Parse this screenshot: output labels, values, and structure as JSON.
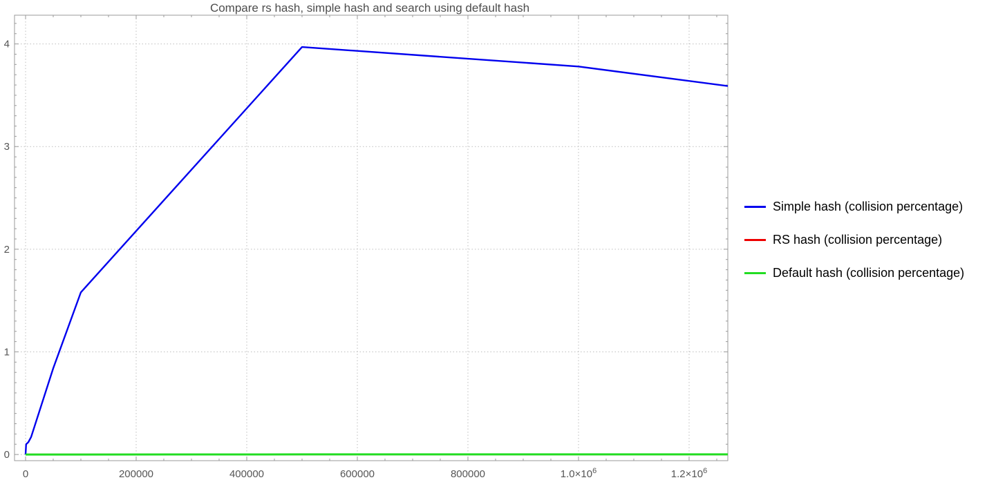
{
  "chart_data": {
    "type": "line",
    "title": "Compare rs hash, simple hash and search using default hash",
    "xlabel": "",
    "ylabel": "",
    "xlim": [
      -20000,
      1270000
    ],
    "ylim": [
      -0.06,
      4.28
    ],
    "grid": true,
    "legend_position": "right",
    "x_ticks": [
      {
        "value": 0,
        "label": "0"
      },
      {
        "value": 200000,
        "label": "200000"
      },
      {
        "value": 400000,
        "label": "400000"
      },
      {
        "value": 600000,
        "label": "600000"
      },
      {
        "value": 800000,
        "label": "800000"
      },
      {
        "value": 1000000,
        "label": "1.0×10",
        "exp": "6"
      },
      {
        "value": 1200000,
        "label": "1.2×10",
        "exp": "6"
      }
    ],
    "y_ticks": [
      {
        "value": 0,
        "label": "0"
      },
      {
        "value": 1,
        "label": "1"
      },
      {
        "value": 2,
        "label": "2"
      },
      {
        "value": 3,
        "label": "3"
      },
      {
        "value": 4,
        "label": "4"
      }
    ],
    "series": [
      {
        "name": "Simple hash (collision percentage)",
        "color": "#0000ee",
        "points": [
          [
            0,
            0.0
          ],
          [
            1000,
            0.1
          ],
          [
            5000,
            0.12
          ],
          [
            10000,
            0.17
          ],
          [
            50000,
            0.84
          ],
          [
            100000,
            1.58
          ],
          [
            500000,
            3.97
          ],
          [
            1000000,
            3.78
          ],
          [
            1270000,
            3.59
          ]
        ]
      },
      {
        "name": "RS hash (collision percentage)",
        "color": "#ee0000",
        "points": [
          [
            0,
            0.0
          ],
          [
            100000,
            0.0
          ],
          [
            500000,
            0.001
          ],
          [
            1000000,
            0.001
          ],
          [
            1270000,
            0.001
          ]
        ]
      },
      {
        "name": "Default hash (collision percentage)",
        "color": "#22dd22",
        "points": [
          [
            0,
            0.0
          ],
          [
            100000,
            0.0
          ],
          [
            500000,
            0.001
          ],
          [
            1000000,
            0.001
          ],
          [
            1270000,
            0.001
          ]
        ]
      }
    ]
  }
}
